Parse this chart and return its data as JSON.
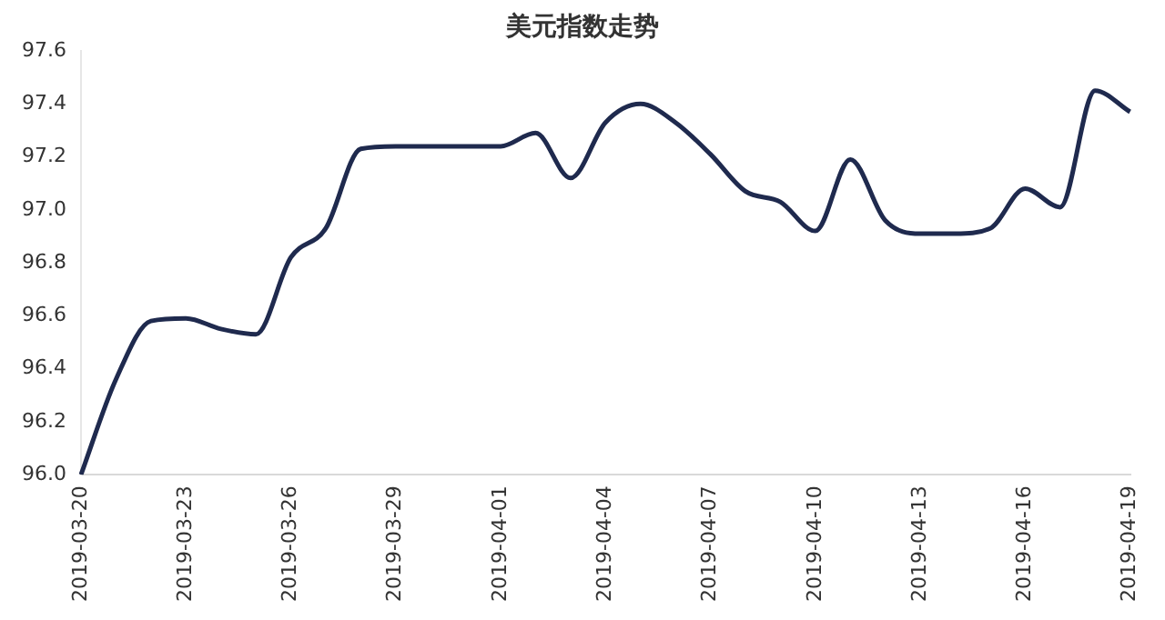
{
  "chart_data": {
    "type": "line",
    "title": "美元指数走势",
    "categories": [
      "2019-03-20",
      null,
      null,
      "2019-03-23",
      null,
      null,
      "2019-03-26",
      null,
      null,
      "2019-03-29",
      null,
      null,
      "2019-04-01",
      null,
      null,
      "2019-04-04",
      null,
      null,
      "2019-04-07",
      null,
      null,
      "2019-04-10",
      null,
      null,
      "2019-04-13",
      null,
      null,
      "2019-04-16",
      null,
      null,
      "2019-04-19"
    ],
    "series": [
      {
        "color": "#1f2a4e",
        "values": [
          96.0,
          96.36,
          96.58,
          96.59,
          96.55,
          96.53,
          96.82,
          96.93,
          97.23,
          97.24,
          97.24,
          97.24,
          97.24,
          97.29,
          97.12,
          97.33,
          97.4,
          97.33,
          97.21,
          97.07,
          97.03,
          96.92,
          97.19,
          96.96,
          96.91,
          96.91,
          96.93,
          97.08,
          97.01,
          97.45,
          97.37
        ]
      }
    ],
    "ylim": [
      96.0,
      97.6
    ],
    "yticks": [
      {
        "value": 96,
        "label": "96.0"
      },
      96.2,
      96.4,
      96.6,
      96.8,
      {
        "value": 97,
        "label": "97.0"
      },
      97.2,
      97.4,
      97.6
    ],
    "grid": false,
    "legend": false,
    "marker": "none",
    "line_style": "solid"
  }
}
